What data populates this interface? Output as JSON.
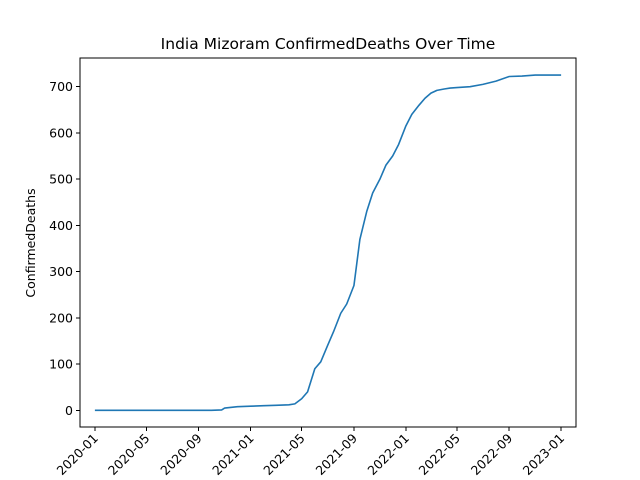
{
  "chart_data": {
    "type": "line",
    "title": "India Mizoram ConfirmedDeaths Over Time",
    "xlabel": "",
    "ylabel": "ConfirmedDeaths",
    "xlim": [
      "2019-11-27",
      "2023-02-05"
    ],
    "ylim": [
      -36,
      762
    ],
    "grid": false,
    "xticks": [
      "2020-01",
      "2020-05",
      "2020-09",
      "2021-01",
      "2021-05",
      "2021-09",
      "2022-01",
      "2022-05",
      "2022-09",
      "2023-01"
    ],
    "yticks": [
      0,
      100,
      200,
      300,
      400,
      500,
      600,
      700
    ],
    "line_color": "#1f77b4",
    "series": [
      {
        "x": [
          "2020-01-01",
          "2020-06-01",
          "2020-10-01",
          "2020-10-25",
          "2020-11-01",
          "2020-12-01",
          "2021-01-01",
          "2021-02-01",
          "2021-03-01",
          "2021-04-01",
          "2021-04-15",
          "2021-05-01",
          "2021-05-15",
          "2021-06-01",
          "2021-06-15",
          "2021-07-01",
          "2021-07-15",
          "2021-08-01",
          "2021-08-15",
          "2021-09-01",
          "2021-09-15",
          "2021-10-01",
          "2021-10-15",
          "2021-11-01",
          "2021-11-15",
          "2021-12-01",
          "2021-12-15",
          "2022-01-01",
          "2022-01-15",
          "2022-02-01",
          "2022-02-15",
          "2022-03-01",
          "2022-03-15",
          "2022-04-01",
          "2022-04-15",
          "2022-05-01",
          "2022-06-01",
          "2022-07-01",
          "2022-08-01",
          "2022-09-01",
          "2022-10-01",
          "2022-11-01",
          "2022-12-01",
          "2023-01-01"
        ],
        "y": [
          0,
          0,
          0,
          1,
          5,
          8,
          9,
          10,
          11,
          12,
          14,
          25,
          40,
          90,
          105,
          140,
          170,
          210,
          230,
          270,
          370,
          430,
          470,
          500,
          530,
          550,
          575,
          615,
          640,
          660,
          675,
          686,
          692,
          695,
          697,
          698,
          700,
          705,
          712,
          722,
          723,
          725,
          725,
          725
        ]
      }
    ]
  }
}
